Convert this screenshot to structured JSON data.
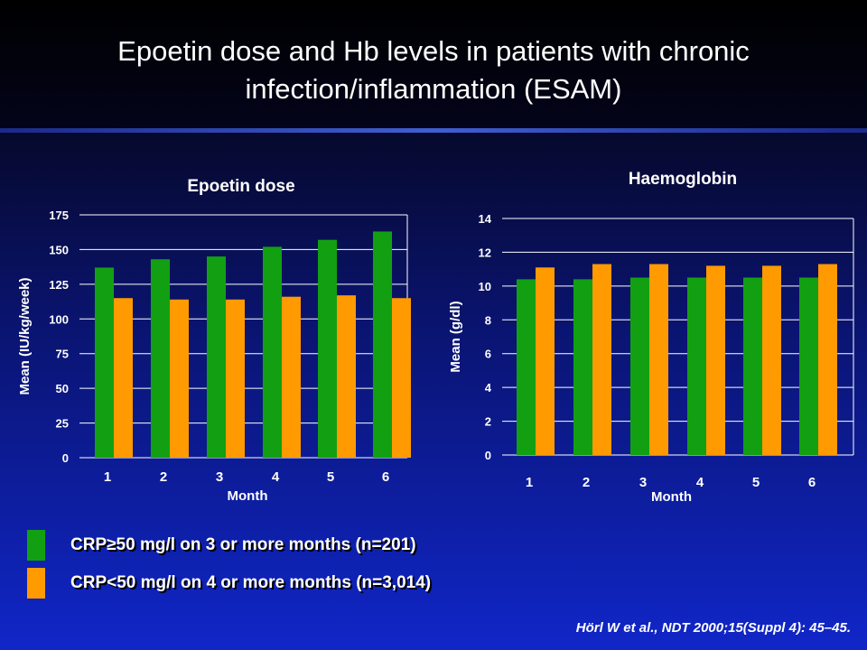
{
  "title": "Epoetin dose and Hb levels in patients with chronic\ninfection/inflammation (ESAM)",
  "colors": {
    "crp_high": "#12a012",
    "crp_low": "#ff9a00",
    "grid": "#ffffff"
  },
  "legend": [
    {
      "label": "CRP≥50 mg/l on 3 or more months (n=201)",
      "color": "#12a012"
    },
    {
      "label": "CRP<50 mg/l on 4 or more months (n=3,014)",
      "color": "#ff9a00"
    }
  ],
  "citation": "Hörl W et al., NDT 2000;15(Suppl 4): 45–45.",
  "chart_data": [
    {
      "type": "bar",
      "title": "Epoetin dose",
      "xlabel": "Month",
      "ylabel": "Mean (IU/kg/week)",
      "categories": [
        "1",
        "2",
        "3",
        "4",
        "5",
        "6"
      ],
      "ylim": [
        0,
        175
      ],
      "yticks": [
        0,
        25,
        50,
        75,
        100,
        125,
        150,
        175
      ],
      "grid": true,
      "series": [
        {
          "name": "CRP≥50 mg/l on 3 or more months (n=201)",
          "values": [
            137,
            143,
            145,
            152,
            157,
            163
          ]
        },
        {
          "name": "CRP<50 mg/l on 4 or more months (n=3,014)",
          "values": [
            115,
            114,
            114,
            116,
            117,
            115
          ]
        }
      ]
    },
    {
      "type": "bar",
      "title": "Haemoglobin",
      "xlabel": "Month",
      "ylabel": "Mean (g/dl)",
      "categories": [
        "1",
        "2",
        "3",
        "4",
        "5",
        "6"
      ],
      "ylim": [
        0,
        14
      ],
      "yticks": [
        0,
        2,
        4,
        6,
        8,
        10,
        12,
        14
      ],
      "grid": true,
      "series": [
        {
          "name": "CRP≥50 mg/l on 3 or more months (n=201)",
          "values": [
            10.4,
            10.4,
            10.5,
            10.5,
            10.5,
            10.5
          ]
        },
        {
          "name": "CRP<50 mg/l on 4 or more months (n=3,014)",
          "values": [
            11.1,
            11.3,
            11.3,
            11.2,
            11.2,
            11.3
          ]
        }
      ]
    }
  ]
}
